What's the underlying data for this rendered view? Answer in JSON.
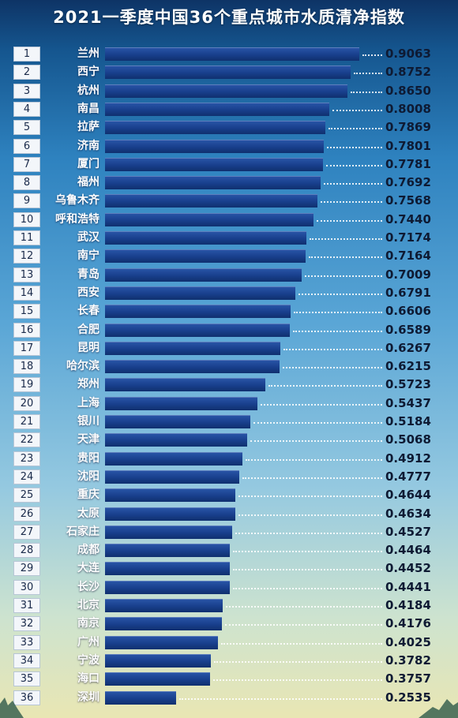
{
  "chart_data": {
    "type": "bar",
    "orientation": "horizontal",
    "title": "2021一季度中国36个重点城市水质清净指数",
    "xlim": [
      0,
      1
    ],
    "grid": false,
    "legend": "none",
    "bar_color": "#1a428f",
    "label_color": "#ffffff",
    "value_color": "#0e1a33",
    "rows": [
      {
        "rank": "1",
        "city": "兰州",
        "value": 0.9063,
        "label": "0.9063"
      },
      {
        "rank": "2",
        "city": "西宁",
        "value": 0.8752,
        "label": "0.8752"
      },
      {
        "rank": "3",
        "city": "杭州",
        "value": 0.865,
        "label": "0.8650"
      },
      {
        "rank": "4",
        "city": "南昌",
        "value": 0.8008,
        "label": "0.8008"
      },
      {
        "rank": "5",
        "city": "拉萨",
        "value": 0.7869,
        "label": "0.7869"
      },
      {
        "rank": "6",
        "city": "济南",
        "value": 0.7801,
        "label": "0.7801"
      },
      {
        "rank": "7",
        "city": "厦门",
        "value": 0.7781,
        "label": "0.7781"
      },
      {
        "rank": "8",
        "city": "福州",
        "value": 0.7692,
        "label": "0.7692"
      },
      {
        "rank": "9",
        "city": "乌鲁木齐",
        "value": 0.7568,
        "label": "0.7568"
      },
      {
        "rank": "10",
        "city": "呼和浩特",
        "value": 0.744,
        "label": "0.7440"
      },
      {
        "rank": "11",
        "city": "武汉",
        "value": 0.7174,
        "label": "0.7174"
      },
      {
        "rank": "12",
        "city": "南宁",
        "value": 0.7164,
        "label": "0.7164"
      },
      {
        "rank": "13",
        "city": "青岛",
        "value": 0.7009,
        "label": "0.7009"
      },
      {
        "rank": "14",
        "city": "西安",
        "value": 0.6791,
        "label": "0.6791"
      },
      {
        "rank": "15",
        "city": "长春",
        "value": 0.6606,
        "label": "0.6606"
      },
      {
        "rank": "16",
        "city": "合肥",
        "value": 0.6589,
        "label": "0.6589"
      },
      {
        "rank": "17",
        "city": "昆明",
        "value": 0.6267,
        "label": "0.6267"
      },
      {
        "rank": "18",
        "city": "哈尔滨",
        "value": 0.6215,
        "label": "0.6215"
      },
      {
        "rank": "19",
        "city": "郑州",
        "value": 0.5723,
        "label": "0.5723"
      },
      {
        "rank": "20",
        "city": "上海",
        "value": 0.5437,
        "label": "0.5437"
      },
      {
        "rank": "21",
        "city": "银川",
        "value": 0.5184,
        "label": "0.5184"
      },
      {
        "rank": "22",
        "city": "天津",
        "value": 0.5068,
        "label": "0.5068"
      },
      {
        "rank": "23",
        "city": "贵阳",
        "value": 0.4912,
        "label": "0.4912"
      },
      {
        "rank": "24",
        "city": "沈阳",
        "value": 0.4777,
        "label": "0.4777"
      },
      {
        "rank": "25",
        "city": "重庆",
        "value": 0.4644,
        "label": "0.4644"
      },
      {
        "rank": "26",
        "city": "太原",
        "value": 0.4634,
        "label": "0.4634"
      },
      {
        "rank": "27",
        "city": "石家庄",
        "value": 0.4527,
        "label": "0.4527"
      },
      {
        "rank": "28",
        "city": "成都",
        "value": 0.4464,
        "label": "0.4464"
      },
      {
        "rank": "29",
        "city": "大连",
        "value": 0.4452,
        "label": "0.4452"
      },
      {
        "rank": "30",
        "city": "长沙",
        "value": 0.4441,
        "label": "0.4441"
      },
      {
        "rank": "31",
        "city": "北京",
        "value": 0.4184,
        "label": "0.4184"
      },
      {
        "rank": "32",
        "city": "南京",
        "value": 0.4176,
        "label": "0.4176"
      },
      {
        "rank": "33",
        "city": "广州",
        "value": 0.4025,
        "label": "0.4025"
      },
      {
        "rank": "34",
        "city": "宁波",
        "value": 0.3782,
        "label": "0.3782"
      },
      {
        "rank": "35",
        "city": "海口",
        "value": 0.3757,
        "label": "0.3757"
      },
      {
        "rank": "36",
        "city": "深圳",
        "value": 0.2535,
        "label": "0.2535"
      }
    ]
  }
}
